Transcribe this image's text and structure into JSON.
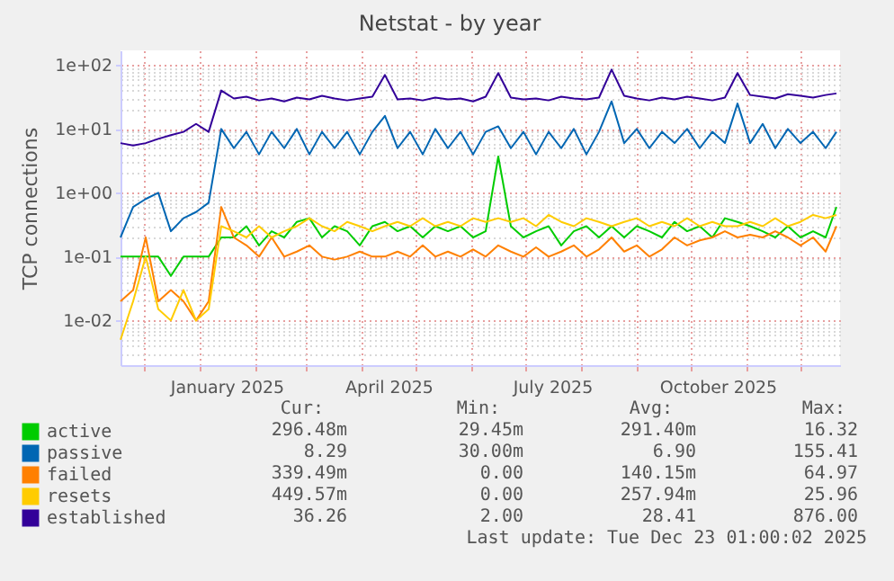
{
  "chart_data": {
    "type": "line",
    "title": "Netstat - by year",
    "ylabel": "TCP connections",
    "x": [
      "2024-11-18",
      "2024-11-25",
      "2024-12-02",
      "2024-12-09",
      "2024-12-16",
      "2024-12-23",
      "2024-12-30",
      "2025-01-06",
      "2025-01-13",
      "2025-01-20",
      "2025-01-27",
      "2025-02-03",
      "2025-02-10",
      "2025-02-17",
      "2025-02-24",
      "2025-03-03",
      "2025-03-10",
      "2025-03-17",
      "2025-03-24",
      "2025-03-31",
      "2025-04-07",
      "2025-04-14",
      "2025-04-21",
      "2025-04-28",
      "2025-05-05",
      "2025-05-12",
      "2025-05-19",
      "2025-05-26",
      "2025-06-02",
      "2025-06-09",
      "2025-06-16",
      "2025-06-23",
      "2025-06-30",
      "2025-07-07",
      "2025-07-14",
      "2025-07-21",
      "2025-07-28",
      "2025-08-04",
      "2025-08-11",
      "2025-08-18",
      "2025-08-25",
      "2025-09-01",
      "2025-09-08",
      "2025-09-15",
      "2025-09-22",
      "2025-09-29",
      "2025-10-06",
      "2025-10-13",
      "2025-10-20",
      "2025-10-27",
      "2025-11-03",
      "2025-11-10",
      "2025-11-17",
      "2025-11-24",
      "2025-12-01",
      "2025-12-08",
      "2025-12-15",
      "2025-12-21"
    ],
    "series": [
      {
        "name": "active",
        "color": "#00cc00",
        "values": [
          0.1,
          0.1,
          0.1,
          0.1,
          0.05,
          0.1,
          0.1,
          0.1,
          0.2,
          0.2,
          0.3,
          0.15,
          0.25,
          0.2,
          0.35,
          0.4,
          0.2,
          0.3,
          0.25,
          0.15,
          0.3,
          0.35,
          0.25,
          0.3,
          0.2,
          0.3,
          0.25,
          0.3,
          0.2,
          0.25,
          3.7,
          0.3,
          0.2,
          0.25,
          0.3,
          0.15,
          0.25,
          0.3,
          0.2,
          0.3,
          0.2,
          0.3,
          0.25,
          0.2,
          0.35,
          0.25,
          0.3,
          0.2,
          0.4,
          0.35,
          0.3,
          0.25,
          0.2,
          0.3,
          0.2,
          0.25,
          0.2,
          0.6
        ]
      },
      {
        "name": "passive",
        "color": "#0066b3",
        "values": [
          0.2,
          0.6,
          0.8,
          1.0,
          0.25,
          0.4,
          0.5,
          0.7,
          10,
          5,
          9,
          4,
          9,
          5,
          10,
          4,
          9,
          5,
          9,
          4,
          9,
          16,
          5,
          9,
          4,
          10,
          5,
          9,
          4,
          9,
          11,
          5,
          9,
          4,
          9,
          5,
          10,
          4,
          9,
          27,
          6,
          10,
          5,
          9,
          6,
          10,
          5,
          9,
          6,
          25,
          6,
          12,
          5,
          10,
          6,
          9,
          5,
          9
        ]
      },
      {
        "name": "failed",
        "color": "#ff8000",
        "values": [
          0.02,
          0.03,
          0.2,
          0.02,
          0.03,
          0.02,
          0.01,
          0.02,
          0.6,
          0.2,
          0.15,
          0.1,
          0.2,
          0.1,
          0.12,
          0.15,
          0.1,
          0.09,
          0.1,
          0.12,
          0.1,
          0.1,
          0.12,
          0.1,
          0.15,
          0.1,
          0.12,
          0.1,
          0.13,
          0.1,
          0.15,
          0.12,
          0.1,
          0.14,
          0.1,
          0.12,
          0.15,
          0.1,
          0.13,
          0.2,
          0.12,
          0.15,
          0.1,
          0.13,
          0.2,
          0.15,
          0.18,
          0.2,
          0.25,
          0.2,
          0.22,
          0.2,
          0.25,
          0.2,
          0.15,
          0.2,
          0.12,
          0.3
        ]
      },
      {
        "name": "resets",
        "color": "#ffcc00",
        "values": [
          0.005,
          0.02,
          0.1,
          0.015,
          0.01,
          0.03,
          0.01,
          0.015,
          0.3,
          0.25,
          0.2,
          0.3,
          0.2,
          0.25,
          0.3,
          0.4,
          0.3,
          0.25,
          0.35,
          0.3,
          0.25,
          0.3,
          0.35,
          0.3,
          0.4,
          0.3,
          0.35,
          0.3,
          0.4,
          0.35,
          0.4,
          0.35,
          0.4,
          0.3,
          0.45,
          0.35,
          0.3,
          0.4,
          0.35,
          0.3,
          0.35,
          0.4,
          0.3,
          0.35,
          0.3,
          0.4,
          0.3,
          0.35,
          0.3,
          0.3,
          0.35,
          0.3,
          0.4,
          0.3,
          0.35,
          0.45,
          0.4,
          0.45
        ]
      },
      {
        "name": "established",
        "color": "#330099",
        "values": [
          6,
          5.5,
          6,
          7,
          8,
          9,
          12,
          9,
          40,
          30,
          32,
          28,
          30,
          27,
          31,
          29,
          33,
          30,
          28,
          30,
          32,
          70,
          29,
          30,
          28,
          31,
          29,
          30,
          27,
          32,
          75,
          31,
          29,
          30,
          28,
          32,
          30,
          29,
          31,
          85,
          33,
          30,
          28,
          31,
          29,
          32,
          30,
          28,
          31,
          75,
          34,
          32,
          30,
          35,
          33,
          31,
          34,
          36
        ]
      }
    ],
    "log": "y",
    "xlim": [
      "2024-11-18",
      "2025-12-23"
    ],
    "xticks": [
      {
        "value": "2024-12-01",
        "label": null
      },
      {
        "value": "2025-01-01",
        "label": null
      },
      {
        "value": "2025-01-16",
        "label": "January 2025"
      },
      {
        "value": "2025-02-01",
        "label": null
      },
      {
        "value": "2025-03-01",
        "label": null
      },
      {
        "value": "2025-04-01",
        "label": null
      },
      {
        "value": "2025-04-16",
        "label": "April 2025"
      },
      {
        "value": "2025-05-01",
        "label": null
      },
      {
        "value": "2025-06-01",
        "label": null
      },
      {
        "value": "2025-07-01",
        "label": null
      },
      {
        "value": "2025-07-16",
        "label": "July 2025"
      },
      {
        "value": "2025-08-01",
        "label": null
      },
      {
        "value": "2025-09-01",
        "label": null
      },
      {
        "value": "2025-10-01",
        "label": null
      },
      {
        "value": "2025-10-16",
        "label": "October 2025"
      },
      {
        "value": "2025-11-01",
        "label": null
      },
      {
        "value": "2025-12-01",
        "label": null
      }
    ],
    "ylim": [
      0.002,
      170
    ],
    "yticks": [
      {
        "value": 0.002,
        "label": null
      },
      {
        "value": 0.003,
        "label": null
      },
      {
        "value": 0.004,
        "label": null
      },
      {
        "value": 0.005,
        "label": null
      },
      {
        "value": 0.006,
        "label": null
      },
      {
        "value": 0.007,
        "label": null
      },
      {
        "value": 0.008,
        "label": null
      },
      {
        "value": 0.009,
        "label": null
      },
      {
        "value": 0.01,
        "label": "1e-02"
      },
      {
        "value": 0.02,
        "label": null
      },
      {
        "value": 0.03,
        "label": null
      },
      {
        "value": 0.04,
        "label": null
      },
      {
        "value": 0.05,
        "label": null
      },
      {
        "value": 0.06,
        "label": null
      },
      {
        "value": 0.07,
        "label": null
      },
      {
        "value": 0.08,
        "label": null
      },
      {
        "value": 0.09,
        "label": null
      },
      {
        "value": 0.1,
        "label": "1e-01"
      },
      {
        "value": 0.2,
        "label": null
      },
      {
        "value": 0.3,
        "label": null
      },
      {
        "value": 0.4,
        "label": null
      },
      {
        "value": 0.5,
        "label": null
      },
      {
        "value": 0.6,
        "label": null
      },
      {
        "value": 0.7,
        "label": null
      },
      {
        "value": 0.8,
        "label": null
      },
      {
        "value": 0.9,
        "label": null
      },
      {
        "value": 1,
        "label": "1e+00"
      },
      {
        "value": 2,
        "label": null
      },
      {
        "value": 3,
        "label": null
      },
      {
        "value": 4,
        "label": null
      },
      {
        "value": 5,
        "label": null
      },
      {
        "value": 6,
        "label": null
      },
      {
        "value": 7,
        "label": null
      },
      {
        "value": 8,
        "label": null
      },
      {
        "value": 9,
        "label": null
      },
      {
        "value": 10,
        "label": "1e+01"
      },
      {
        "value": 20,
        "label": null
      },
      {
        "value": 30,
        "label": null
      },
      {
        "value": 40,
        "label": null
      },
      {
        "value": 50,
        "label": null
      },
      {
        "value": 60,
        "label": null
      },
      {
        "value": 70,
        "label": null
      },
      {
        "value": 80,
        "label": null
      },
      {
        "value": 90,
        "label": null
      },
      {
        "value": 100,
        "label": "1e+02"
      }
    ],
    "grid": true,
    "legend": "bottom",
    "marker": "none",
    "line_style": "solid",
    "annotations": [
      "Cur:",
      "Min:",
      "Avg:",
      "Max:",
      "296.48m",
      "29.45m",
      "291.40m",
      "16.32",
      "8.29",
      "30.00m",
      "6.90",
      "155.41",
      "339.49m",
      "0.00",
      "140.15m",
      "64.97",
      "449.57m",
      "0.00",
      "257.94m",
      "25.96",
      "36.26",
      "2.00",
      "28.41",
      "876.00",
      "Last update: Tue Dec 23 01:00:02 2025"
    ]
  }
}
